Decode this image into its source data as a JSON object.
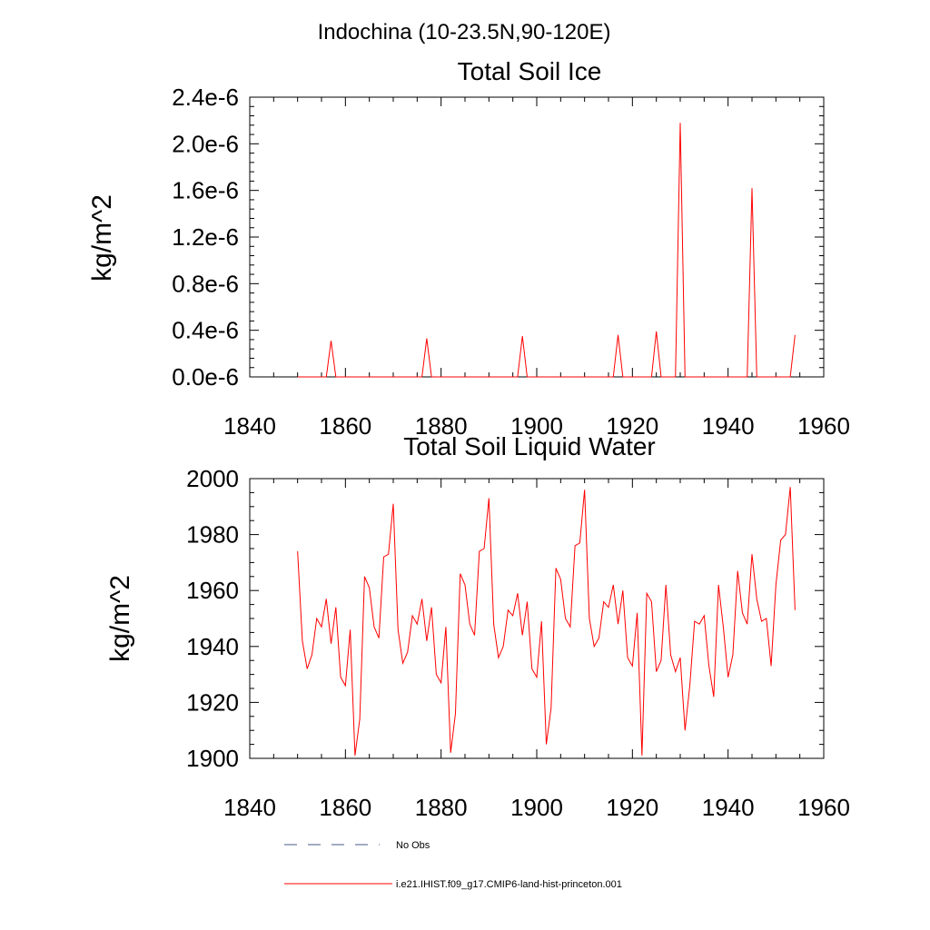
{
  "page": {
    "title": "Indochina (10-23.5N,90-120E)"
  },
  "colors": {
    "model": "#ff0000",
    "obs": "#4a5a8a",
    "axes": "#000000",
    "background": "#ffffff"
  },
  "legend": {
    "entries": [
      {
        "label": "No Obs",
        "style": "dashed",
        "color": "#4a5a8a"
      },
      {
        "label": "i.e21.IHIST.f09_g17.CMIP6-land-hist-princeton.001",
        "style": "solid",
        "color": "#ff0000"
      }
    ]
  },
  "chart_data": [
    {
      "type": "line",
      "title": "Total Soil Ice",
      "xlabel": "",
      "ylabel": "kg/m^2",
      "xlim": [
        1840,
        1960
      ],
      "ylim": [
        0.0,
        2.4e-06
      ],
      "x_ticks": [
        1840,
        1860,
        1880,
        1900,
        1920,
        1940,
        1960
      ],
      "x_tick_labels": [
        "1840",
        "1860",
        "1880",
        "1900",
        "1920",
        "1940",
        "1960"
      ],
      "y_ticks": [
        0.0,
        4e-07,
        8e-07,
        1.2e-06,
        1.6e-06,
        2e-06,
        2.4e-06
      ],
      "y_tick_labels": [
        "0.0e-6",
        "0.4e-6",
        "0.8e-6",
        "1.2e-6",
        "1.6e-6",
        "2.0e-6",
        "2.4e-6"
      ],
      "grid": false,
      "series": [
        {
          "name": "i.e21.IHIST.f09_g17.CMIP6-land-hist-princeton.001",
          "x": [
            1850,
            1851,
            1852,
            1853,
            1854,
            1855,
            1856,
            1857,
            1858,
            1859,
            1860,
            1861,
            1862,
            1863,
            1864,
            1865,
            1866,
            1867,
            1868,
            1869,
            1870,
            1871,
            1872,
            1873,
            1874,
            1875,
            1876,
            1877,
            1878,
            1879,
            1880,
            1881,
            1882,
            1883,
            1884,
            1885,
            1886,
            1887,
            1888,
            1889,
            1890,
            1891,
            1892,
            1893,
            1894,
            1895,
            1896,
            1897,
            1898,
            1899,
            1900,
            1901,
            1902,
            1903,
            1904,
            1905,
            1906,
            1907,
            1908,
            1909,
            1910,
            1911,
            1912,
            1913,
            1914,
            1915,
            1916,
            1917,
            1918,
            1919,
            1920,
            1921,
            1922,
            1923,
            1924,
            1925,
            1926,
            1927,
            1928,
            1929,
            1930,
            1931,
            1932,
            1933,
            1934,
            1935,
            1936,
            1937,
            1938,
            1939,
            1940,
            1941,
            1942,
            1943,
            1944,
            1945,
            1946,
            1947,
            1948,
            1949,
            1950,
            1951,
            1952,
            1953,
            1954
          ],
          "y": [
            0,
            0,
            0,
            0,
            0,
            0,
            0,
            3.1e-07,
            0,
            0,
            0,
            0,
            0,
            0,
            0,
            0,
            0,
            0,
            0,
            0,
            0,
            0,
            0,
            0,
            0,
            0,
            0,
            3.3e-07,
            0,
            0,
            0,
            0,
            0,
            0,
            0,
            0,
            0,
            0,
            0,
            0,
            0,
            0,
            0,
            0,
            0,
            0,
            0,
            3.5e-07,
            0,
            0,
            0,
            0,
            0,
            0,
            0,
            0,
            0,
            0,
            0,
            0,
            0,
            0,
            0,
            0,
            0,
            0,
            0,
            3.6e-07,
            0,
            0,
            0,
            0,
            0,
            0,
            0,
            3.9e-07,
            0,
            0,
            0,
            0,
            2.18e-06,
            0,
            0,
            0,
            0,
            0,
            0,
            0,
            0,
            0,
            0,
            0,
            0,
            0,
            0,
            1.62e-06,
            0,
            0,
            0,
            0,
            0,
            0,
            0,
            0,
            3.6e-07
          ]
        }
      ]
    },
    {
      "type": "line",
      "title": "Total Soil Liquid Water",
      "xlabel": "",
      "ylabel": "kg/m^2",
      "xlim": [
        1840,
        1960
      ],
      "ylim": [
        1900,
        2000
      ],
      "x_ticks": [
        1840,
        1860,
        1880,
        1900,
        1920,
        1940,
        1960
      ],
      "x_tick_labels": [
        "1840",
        "1860",
        "1880",
        "1900",
        "1920",
        "1940",
        "1960"
      ],
      "y_ticks": [
        1900,
        1920,
        1940,
        1960,
        1980,
        2000
      ],
      "y_tick_labels": [
        "1900",
        "1920",
        "1940",
        "1960",
        "1980",
        "2000"
      ],
      "grid": false,
      "series": [
        {
          "name": "i.e21.IHIST.f09_g17.CMIP6-land-hist-princeton.001",
          "x": [
            1850,
            1851,
            1852,
            1853,
            1854,
            1855,
            1856,
            1857,
            1858,
            1859,
            1860,
            1861,
            1862,
            1863,
            1864,
            1865,
            1866,
            1867,
            1868,
            1869,
            1870,
            1871,
            1872,
            1873,
            1874,
            1875,
            1876,
            1877,
            1878,
            1879,
            1880,
            1881,
            1882,
            1883,
            1884,
            1885,
            1886,
            1887,
            1888,
            1889,
            1890,
            1891,
            1892,
            1893,
            1894,
            1895,
            1896,
            1897,
            1898,
            1899,
            1900,
            1901,
            1902,
            1903,
            1904,
            1905,
            1906,
            1907,
            1908,
            1909,
            1910,
            1911,
            1912,
            1913,
            1914,
            1915,
            1916,
            1917,
            1918,
            1919,
            1920,
            1921,
            1922,
            1923,
            1924,
            1925,
            1926,
            1927,
            1928,
            1929,
            1930,
            1931,
            1932,
            1933,
            1934,
            1935,
            1936,
            1937,
            1938,
            1939,
            1940,
            1941,
            1942,
            1943,
            1944,
            1945,
            1946,
            1947,
            1948,
            1949,
            1950,
            1951,
            1952,
            1953,
            1954
          ],
          "y": [
            1974,
            1942,
            1932,
            1937,
            1950,
            1947,
            1957,
            1941,
            1954,
            1929,
            1926,
            1946,
            1901,
            1914,
            1965,
            1961,
            1947,
            1943,
            1972,
            1973,
            1991,
            1946,
            1934,
            1938,
            1951,
            1948,
            1957,
            1942,
            1954,
            1930,
            1927,
            1947,
            1902,
            1916,
            1966,
            1962,
            1948,
            1944,
            1974,
            1975,
            1993,
            1948,
            1936,
            1940,
            1953,
            1951,
            1959,
            1944,
            1956,
            1932,
            1929,
            1949,
            1905,
            1918,
            1968,
            1964,
            1950,
            1947,
            1976,
            1977,
            1996,
            1950,
            1940,
            1943,
            1956,
            1954,
            1962,
            1948,
            1960,
            1936,
            1933,
            1952,
            1901,
            1959,
            1956,
            1931,
            1935,
            1962,
            1937,
            1931,
            1936,
            1910,
            1926,
            1949,
            1948,
            1951,
            1933,
            1922,
            1962,
            1947,
            1929,
            1937,
            1967,
            1952,
            1948,
            1973,
            1957,
            1949,
            1950,
            1933,
            1962,
            1978,
            1980,
            1997,
            1953
          ]
        }
      ]
    }
  ]
}
